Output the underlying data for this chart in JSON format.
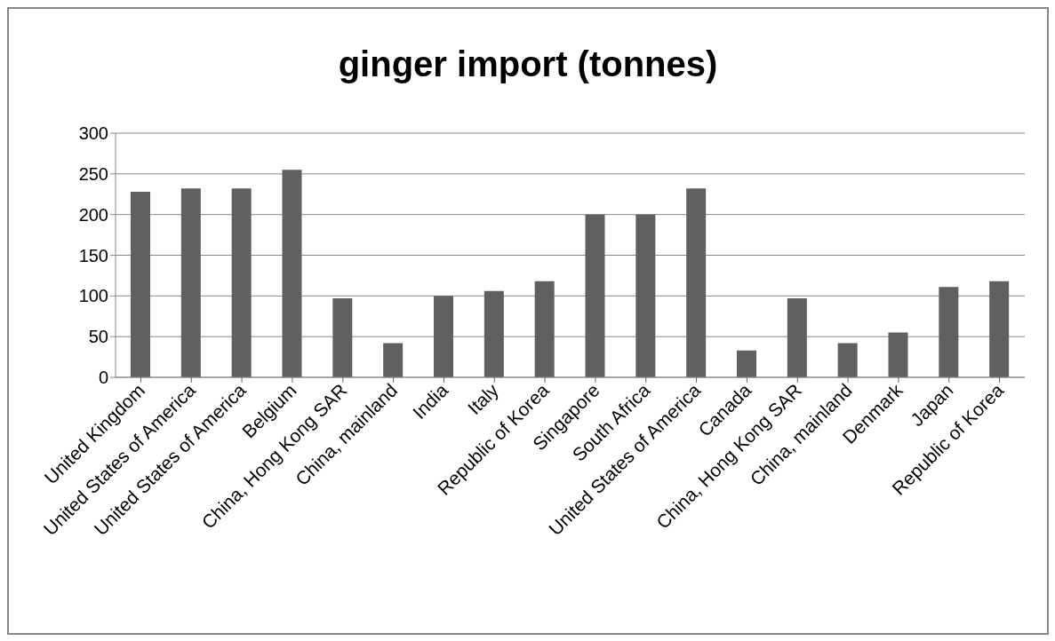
{
  "chart_data": {
    "type": "bar",
    "title": "ginger import (tonnes)",
    "categories": [
      "United Kingdom",
      "United States of America",
      "United States of America",
      "Belgium",
      "China, Hong Kong SAR",
      "China, mainland",
      "India",
      "Italy",
      "Republic of Korea",
      "Singapore",
      "South Africa",
      "United States of America",
      "Canada",
      "China, Hong Kong SAR",
      "China, mainland",
      "Denmark",
      "Japan",
      "Republic of Korea"
    ],
    "values": [
      228,
      232,
      232,
      255,
      97,
      42,
      100,
      106,
      118,
      200,
      200,
      232,
      33,
      97,
      42,
      55,
      111,
      118
    ],
    "color": "#606060",
    "ylim": [
      0,
      300
    ],
    "yticks": [
      0,
      50,
      100,
      150,
      200,
      250,
      300
    ],
    "grid": "y"
  }
}
